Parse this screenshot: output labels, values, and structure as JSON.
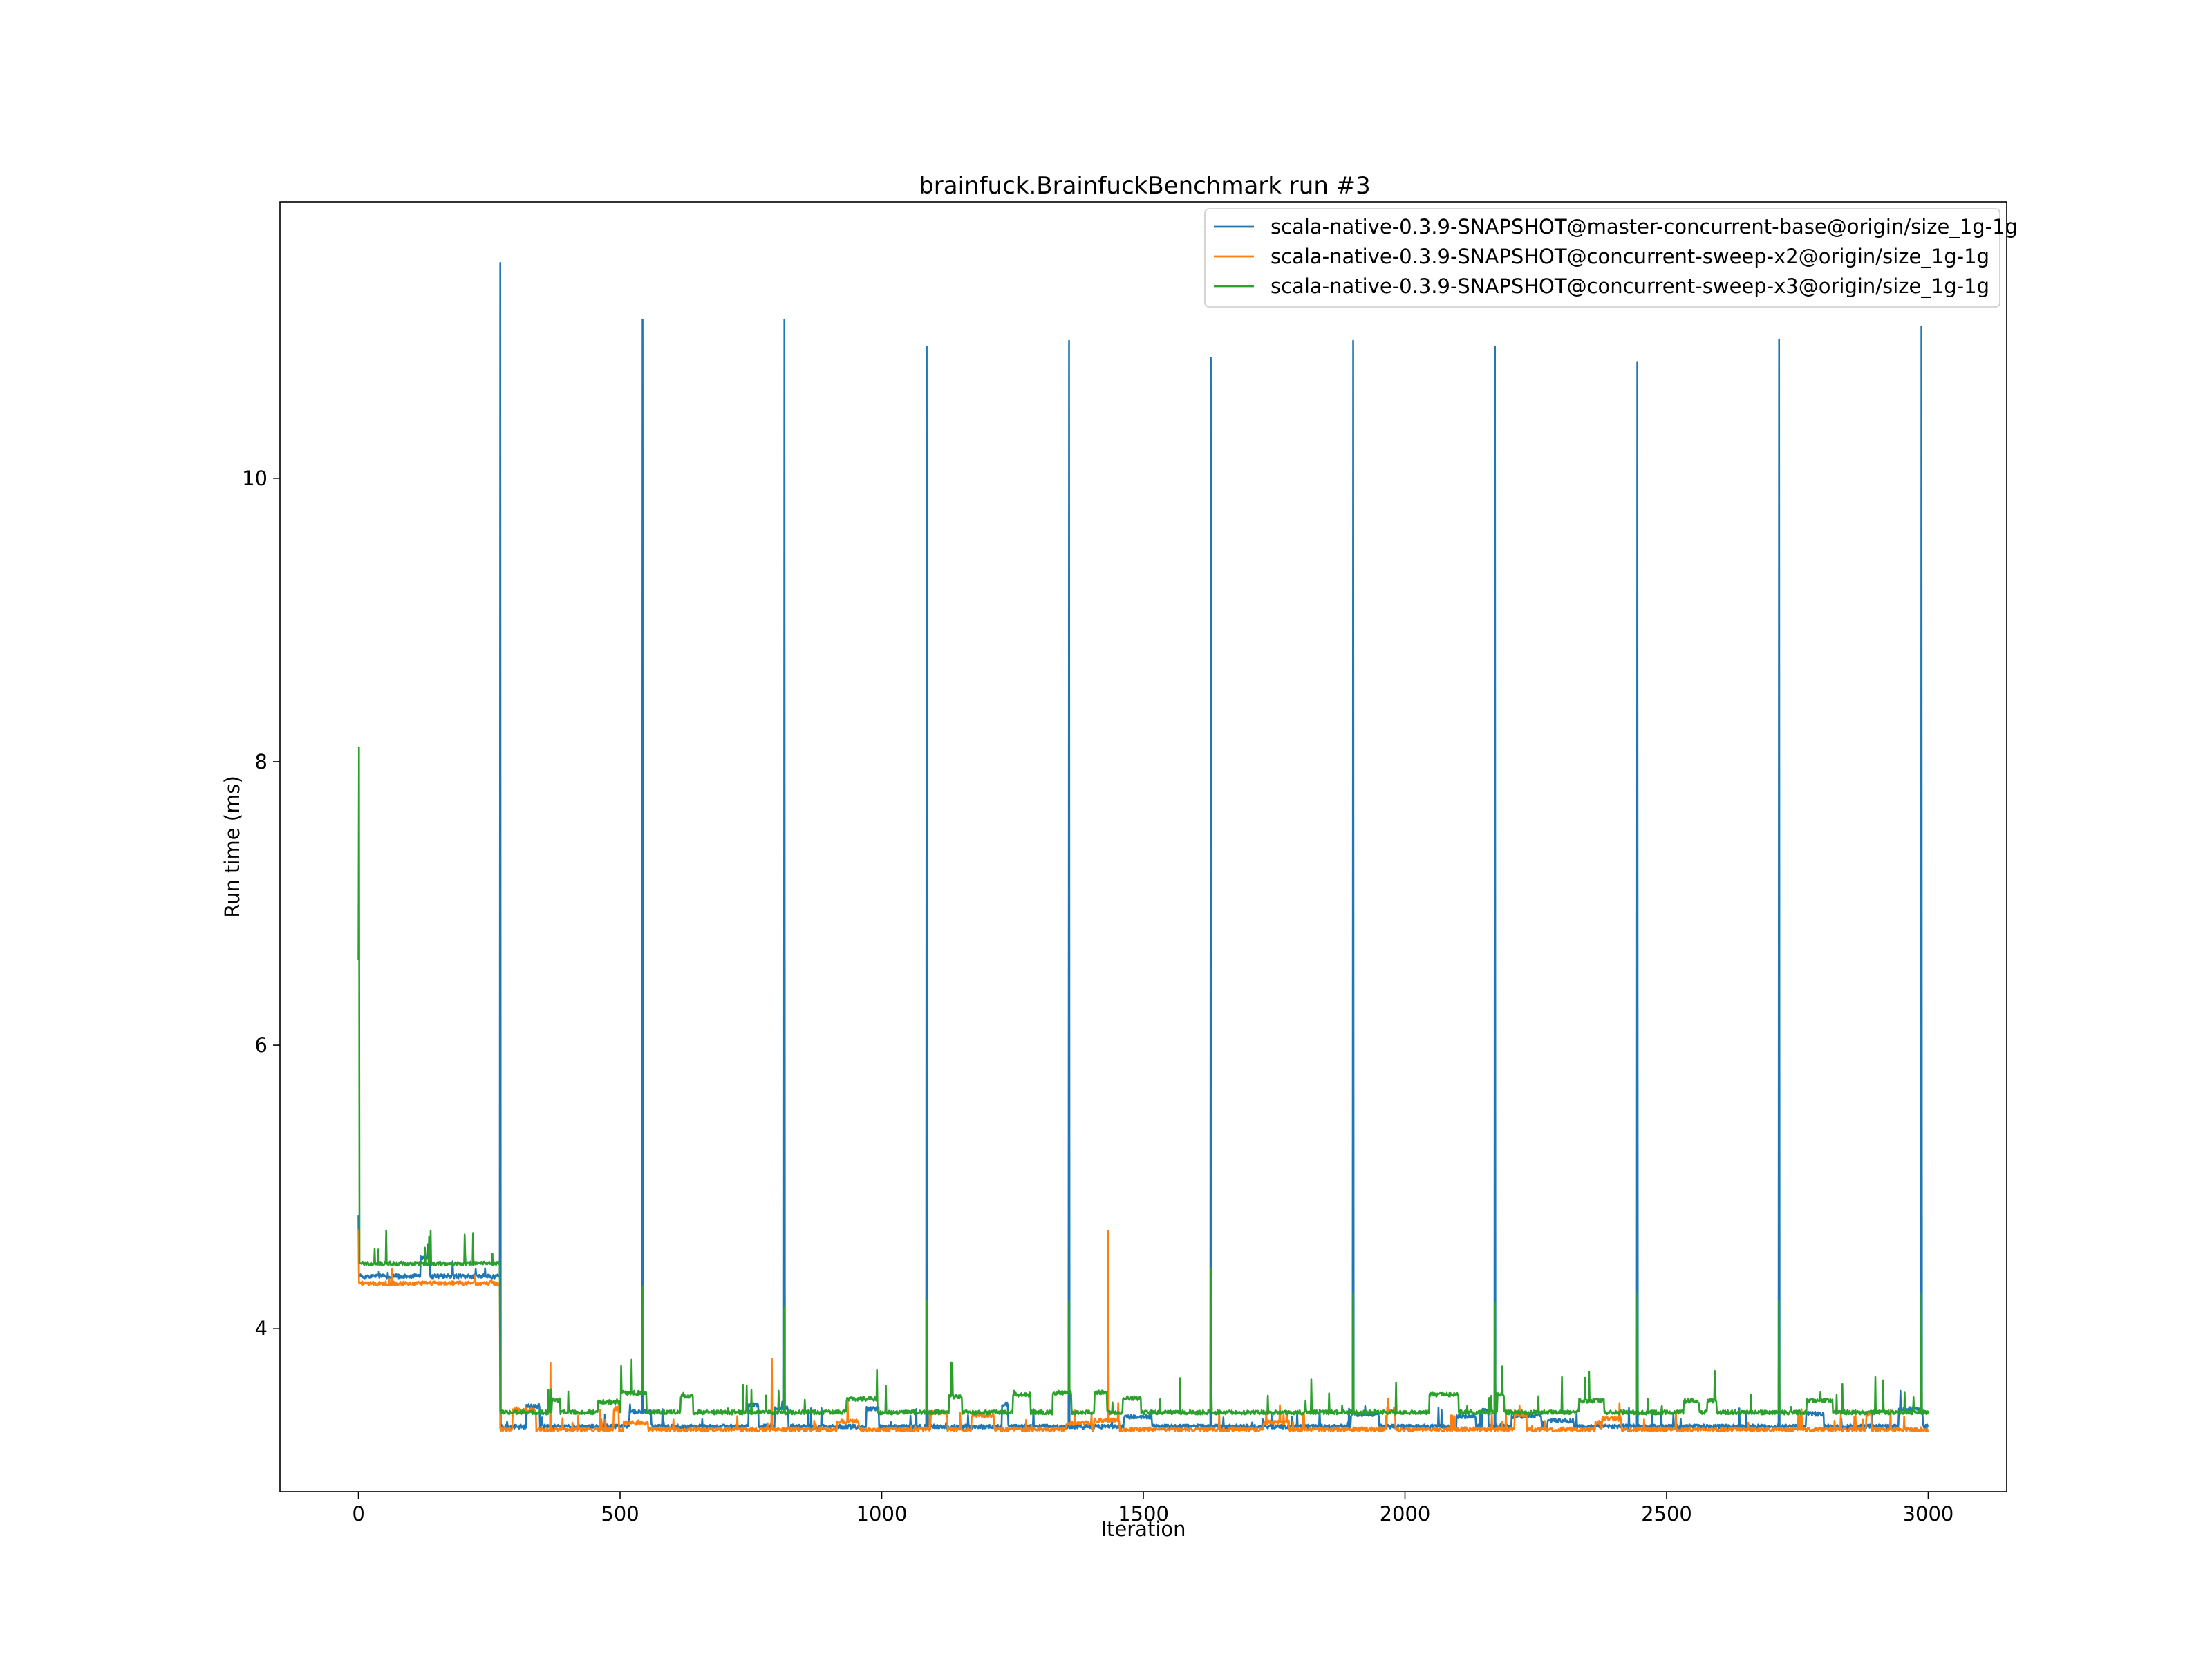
{
  "chart_data": {
    "type": "line",
    "title": "brainfuck.BrainfuckBenchmark run #3",
    "xlabel": "Iteration",
    "ylabel": "Run time (ms)",
    "xlim": [
      -150,
      3150
    ],
    "ylim": [
      2.85,
      11.95
    ],
    "xticks": [
      0,
      500,
      1000,
      1500,
      2000,
      2500,
      3000
    ],
    "yticks": [
      4,
      6,
      8,
      10
    ],
    "grid": false,
    "legend_position": "top-right",
    "series": [
      {
        "name": "scala-native-0.3.9-SNAPSHOT@master-concurrent-base@origin/size_1g-1g",
        "color": "#1f77b4",
        "warmup_level": 4.37,
        "base_level": 3.31,
        "spike_value": 11.1,
        "spikes": [
          [
            271,
            11.52
          ],
          [
            543,
            11.12
          ],
          [
            814,
            11.12
          ],
          [
            1086,
            10.93
          ],
          [
            1358,
            10.97
          ],
          [
            1629,
            10.85
          ],
          [
            1901,
            10.97
          ],
          [
            2172,
            10.93
          ],
          [
            2444,
            10.82
          ],
          [
            2715,
            10.98
          ],
          [
            2987,
            11.07
          ]
        ]
      },
      {
        "name": "scala-native-0.3.9-SNAPSHOT@concurrent-sweep-x2@origin/size_1g-1g",
        "color": "#ff7f0e",
        "warmup_level": 4.32,
        "base_level": 3.29,
        "spikes": [
          [
            367,
            3.76
          ],
          [
            790,
            3.79
          ],
          [
            1433,
            4.69
          ]
        ]
      },
      {
        "name": "scala-native-0.3.9-SNAPSHOT@concurrent-sweep-x3@origin/size_1g-1g",
        "color": "#2ca02c",
        "warmup_level": 4.46,
        "base_level": 3.41,
        "first_value": 8.1,
        "spikes": [
          [
            1,
            8.1
          ],
          [
            543,
            4.3
          ],
          [
            814,
            4.15
          ],
          [
            1086,
            4.2
          ],
          [
            1358,
            4.2
          ],
          [
            1629,
            4.42
          ],
          [
            1901,
            4.25
          ],
          [
            2172,
            4.18
          ],
          [
            2444,
            4.25
          ],
          [
            2715,
            4.2
          ],
          [
            2987,
            4.25
          ]
        ]
      }
    ]
  }
}
